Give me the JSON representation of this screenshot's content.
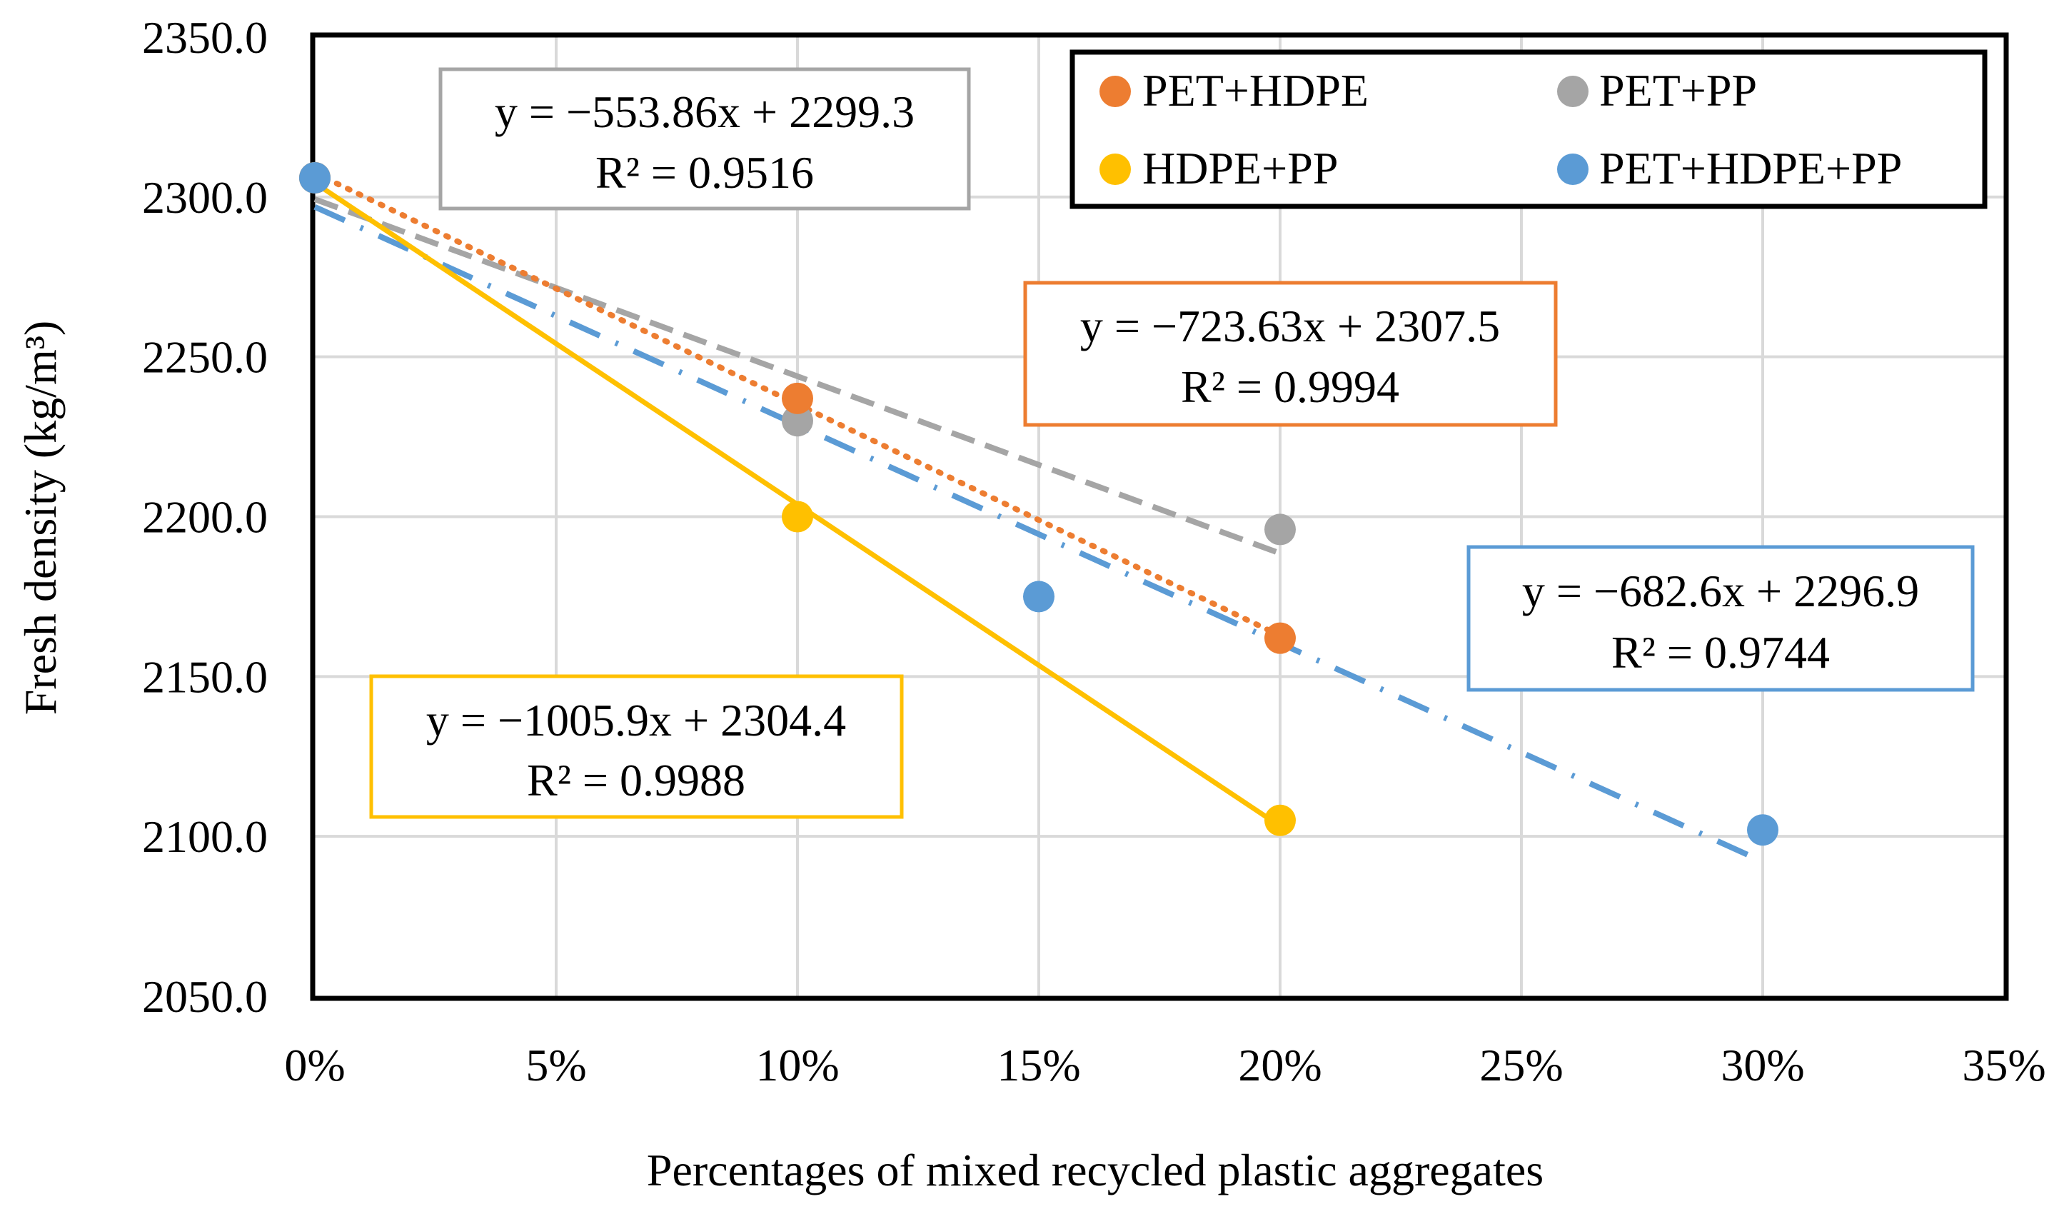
{
  "chart_data": {
    "type": "scatter",
    "xlabel": "Percentages of mixed recycled plastic aggregates",
    "ylabel": "Fresh density (kg/m³)",
    "xlim": [
      0,
      0.35
    ],
    "ylim": [
      2050,
      2350
    ],
    "grid": true,
    "x_ticks": [
      0,
      0.05,
      0.1,
      0.15,
      0.2,
      0.25,
      0.3,
      0.35
    ],
    "x_tick_labels": [
      "0%",
      "5%",
      "10%",
      "15%",
      "20%",
      "25%",
      "30%",
      "35%"
    ],
    "y_ticks": [
      2050,
      2100,
      2150,
      2200,
      2250,
      2300,
      2350
    ],
    "y_tick_labels": [
      "2050.0",
      "2100.0",
      "2150.0",
      "2200.0",
      "2250.0",
      "2300.0",
      "2350.0"
    ],
    "legend_position": "top-right",
    "series": [
      {
        "name": "PET+HDPE",
        "color": "#ED7D31",
        "x": [
          0,
          0.1,
          0.2
        ],
        "y": [
          2306,
          2237,
          2162
        ],
        "trendline": {
          "slope": -723.63,
          "intercept": 2307.5,
          "x_range": [
            0,
            0.2
          ],
          "style": "dotted"
        },
        "equation": "y = −723.63x + 2307.5",
        "r2": "R² = 0.9994"
      },
      {
        "name": "PET+PP",
        "color": "#A5A5A5",
        "x": [
          0,
          0.1,
          0.2
        ],
        "y": [
          2306,
          2230,
          2196
        ],
        "trendline": {
          "slope": -553.86,
          "intercept": 2299.3,
          "x_range": [
            0,
            0.2
          ],
          "style": "dashed"
        },
        "equation": "y = −553.86x + 2299.3",
        "r2": "R² = 0.9516"
      },
      {
        "name": "HDPE+PP",
        "color": "#FFC000",
        "x": [
          0,
          0.1,
          0.2
        ],
        "y": [
          2306,
          2200,
          2105
        ],
        "trendline": {
          "slope": -1005.9,
          "intercept": 2304.4,
          "x_range": [
            0,
            0.2
          ],
          "style": "solid"
        },
        "equation": "y = −1005.9x + 2304.4",
        "r2": "R² = 0.9988"
      },
      {
        "name": "PET+HDPE+PP",
        "color": "#5B9BD5",
        "x": [
          0,
          0.15,
          0.3
        ],
        "y": [
          2306,
          2175,
          2102
        ],
        "trendline": {
          "slope": -682.6,
          "intercept": 2296.9,
          "x_range": [
            0,
            0.3
          ],
          "style": "dashdot"
        },
        "equation": "y = −682.6x + 2296.9",
        "r2": "R² = 0.9744"
      }
    ]
  }
}
